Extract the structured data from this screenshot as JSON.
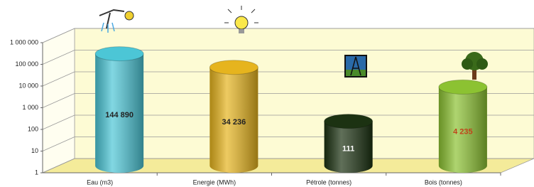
{
  "chart_data": {
    "type": "bar3d-cylinder",
    "categories": [
      "Eau (m3)",
      "Energie (MWh)",
      "Pétrole (tonnes)",
      "Bois (tonnes)"
    ],
    "values": [
      144890,
      34236,
      111,
      4235
    ],
    "value_labels": [
      "144 890",
      "34 236",
      "111",
      "4 235"
    ],
    "colors": [
      "#4cc6d6",
      "#e6b41e",
      "#1c3212",
      "#8cc232"
    ],
    "value_label_colors": [
      "#222222",
      "#222222",
      "#ffffff",
      "#c0441a"
    ],
    "ylim": [
      1,
      1000000
    ],
    "yticks": [
      1,
      10,
      100,
      {
        "value": 1000,
        "label": "1 000"
      },
      {
        "value": 10000,
        "label": "10 000"
      },
      {
        "value": 100000,
        "label": "100 000"
      },
      {
        "value": 1000000,
        "label": "1 000 000"
      }
    ],
    "log_scale": true,
    "grid": true
  }
}
